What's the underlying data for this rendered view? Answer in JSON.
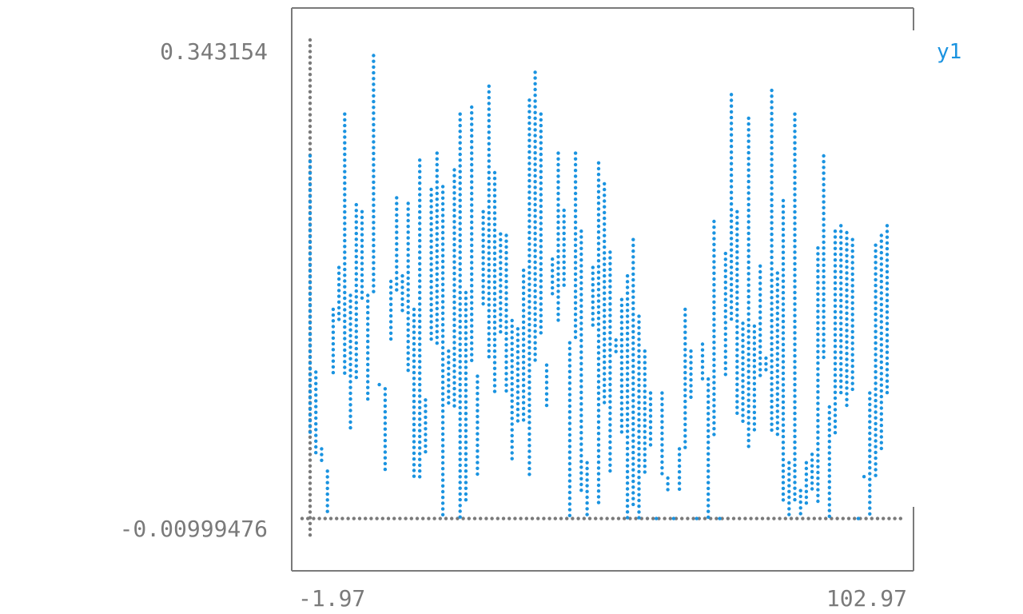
{
  "chart_data": {
    "type": "scatter",
    "title": "",
    "xlabel": "",
    "ylabel": "",
    "xlim": [
      -1.97,
      102.97
    ],
    "ylim": [
      -0.00999476,
      0.343154
    ],
    "x_tick_labels": [
      "-1.97",
      "102.97"
    ],
    "y_tick_labels": [
      "0.343154",
      "-0.00999476"
    ],
    "legend_position": "top-right",
    "grid": false,
    "axis_color": "#7a7a7a",
    "series": [
      {
        "name": "y1",
        "color": "#1a93e0",
        "x": [
          0,
          1,
          2,
          3,
          4,
          5,
          6,
          7,
          8,
          9,
          10,
          11,
          12,
          13,
          14,
          15,
          16,
          17,
          18,
          19,
          20,
          21,
          22,
          23,
          24,
          25,
          26,
          27,
          28,
          29,
          30,
          31,
          32,
          33,
          34,
          35,
          36,
          37,
          38,
          39,
          40,
          41,
          42,
          43,
          44,
          45,
          46,
          47,
          48,
          49,
          50,
          51,
          52,
          53,
          54,
          55,
          56,
          57,
          58,
          59,
          60,
          61,
          62,
          63,
          64,
          65,
          66,
          67,
          68,
          69,
          70,
          71,
          72,
          73,
          74,
          75,
          76,
          77,
          78,
          79,
          80,
          81,
          82,
          83,
          84,
          85,
          86,
          87,
          88,
          89,
          90,
          91,
          92,
          93,
          94,
          95,
          96,
          97,
          98,
          99,
          100
        ],
        "y": [
          0.26,
          0.105,
          0.05,
          0.034,
          0.15,
          0.14,
          0.29,
          0.16,
          0.225,
          0.22,
          0.16,
          0.332,
          0.095,
          0.093,
          0.17,
          0.23,
          0.146,
          0.226,
          0.15,
          0.257,
          0.085,
          0.236,
          0.262,
          0.238,
          0.12,
          0.25,
          0.29,
          0.162,
          0.295,
          0.102,
          0.22,
          0.31,
          0.248,
          0.204,
          0.203,
          0.042,
          0.136,
          0.178,
          0.3,
          0.32,
          0.29,
          0.11,
          0.186,
          0.262,
          0.221,
          0.126,
          0.262,
          0.206,
          0.04,
          0.135,
          0.255,
          0.24,
          0.191,
          0.128,
          0.157,
          0.174,
          0.2,
          0.145,
          0.12,
          0.09,
          0.0,
          0.09,
          0.029,
          0.0,
          0.05,
          0.15,
          0.086,
          0.0,
          0.1,
          0.1,
          0.213,
          0.0,
          0.19,
          0.304,
          0.22,
          0.14,
          0.287,
          0.138,
          0.181,
          0.115,
          0.307,
          0.176,
          0.228,
          0.04,
          0.29,
          0.02,
          0.04,
          0.046,
          0.194,
          0.26,
          0.08,
          0.206,
          0.21,
          0.205,
          0.2,
          0.0,
          0.03,
          0.09,
          0.196,
          0.203,
          0.21
        ],
        "lo": [
          0.06,
          0.044,
          0.04,
          0.004,
          0.104,
          0.18,
          0.104,
          0.063,
          0.098,
          0.158,
          0.082,
          0.161,
          0.096,
          0.034,
          0.125,
          0.162,
          0.174,
          0.106,
          0.03,
          0.027,
          0.047,
          0.128,
          0.122,
          0.0,
          0.08,
          0.08,
          0.0,
          0.01,
          0.11,
          0.03,
          0.154,
          0.115,
          0.09,
          0.13,
          0.09,
          0.142,
          0.07,
          0.07,
          0.03,
          0.11,
          0.13,
          0.08,
          0.161,
          0.14,
          0.167,
          0.0,
          0.13,
          0.02,
          0.0,
          0.18,
          0.01,
          0.08,
          0.032,
          0.12,
          0.06,
          0.0,
          0.01,
          0.0,
          0.03,
          0.05,
          0.0,
          0.03,
          0.02,
          0.0,
          0.02,
          0.05,
          0.12,
          0.0,
          0.125,
          0.0,
          0.06,
          0.0,
          0.1,
          0.14,
          0.075,
          0.07,
          0.05,
          0.06,
          0.1,
          0.105,
          0.06,
          0.06,
          0.01,
          0.0,
          0.01,
          0.0,
          0.01,
          0.02,
          0.01,
          0.114,
          0.0,
          0.06,
          0.09,
          0.08,
          0.09,
          0.0,
          0.03,
          0.0,
          0.03,
          0.05,
          0.09
        ]
      }
    ]
  }
}
